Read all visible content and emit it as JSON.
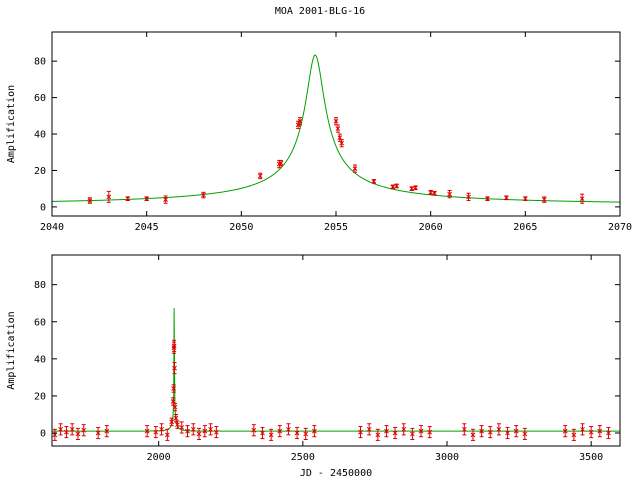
{
  "title": "MOA 2001-BLG-16",
  "colors": {
    "model": "#00a000",
    "data": "#e00000",
    "axes": "#000000"
  },
  "chart_data": [
    {
      "type": "scatter",
      "title": "MOA 2001-BLG-16",
      "xlabel": "",
      "ylabel": "Amplification",
      "xlim": [
        2040,
        2070
      ],
      "ylim": [
        -5,
        96
      ],
      "xticks": [
        2040,
        2045,
        2050,
        2055,
        2060,
        2065,
        2070
      ],
      "yticks": [
        0,
        20,
        40,
        60,
        80
      ],
      "grid": false,
      "model": {
        "t0": 2053.9,
        "u0": 0.012,
        "tE": 40.0,
        "color": "#00a000"
      },
      "series": [
        {
          "x": [
            2042.0,
            2043.0,
            2044.0,
            2045.0,
            2046.0,
            2048.0,
            2051.0,
            2052.0,
            2052.1,
            2053.0,
            2053.1,
            2055.0,
            2055.1,
            2055.2,
            2055.3,
            2056.0,
            2057.0,
            2058.0,
            2058.2,
            2059.0,
            2059.2,
            2060.0,
            2060.2,
            2061.0,
            2062.0,
            2063.0,
            2064.0,
            2065.0,
            2066.0,
            2068.0
          ],
          "y": [
            3.5,
            5.5,
            4.5,
            4.5,
            4.0,
            6.5,
            17.0,
            23.5,
            24.0,
            45.0,
            47.0,
            47.0,
            43.0,
            38.0,
            35.0,
            21.0,
            14.0,
            11.0,
            11.5,
            10.0,
            10.5,
            8.0,
            7.5,
            7.0,
            5.5,
            4.5,
            5.0,
            4.5,
            4.0,
            4.5
          ],
          "err": [
            1.5,
            3,
            1,
            1,
            2,
            1.5,
            1.5,
            2,
            1.5,
            2,
            2,
            2,
            2,
            2,
            2,
            2,
            1,
            1,
            1,
            1,
            1,
            1,
            1,
            2,
            2,
            1,
            1,
            1,
            1.5,
            2.5
          ],
          "color": "#e00000"
        }
      ]
    },
    {
      "type": "scatter",
      "title": "",
      "xlabel": "JD - 2450000",
      "ylabel": "Amplification",
      "xlim": [
        1630,
        3600
      ],
      "ylim": [
        -7,
        96
      ],
      "xticks": [
        2000,
        2500,
        3000,
        3500
      ],
      "yticks": [
        0,
        20,
        40,
        60,
        80
      ],
      "grid": false,
      "model": {
        "t0": 2053.9,
        "u0": 0.012,
        "tE": 40.0,
        "color": "#00a000"
      },
      "series": [
        {
          "x": [
            1640,
            1660,
            1680,
            1700,
            1720,
            1740,
            1790,
            1820,
            1960,
            1990,
            2010,
            2030,
            2045,
            2050,
            2052,
            2053,
            2053.5,
            2055,
            2057,
            2060,
            2065,
            2080,
            2100,
            2120,
            2140,
            2160,
            2180,
            2200,
            2330,
            2360,
            2390,
            2420,
            2450,
            2480,
            2510,
            2540,
            2700,
            2730,
            2760,
            2790,
            2820,
            2850,
            2880,
            2910,
            2940,
            3060,
            3090,
            3120,
            3150,
            3180,
            3210,
            3240,
            3270,
            3410,
            3440,
            3470,
            3500,
            3530,
            3560
          ],
          "y": [
            -1,
            2,
            0.5,
            2,
            -0.5,
            1.5,
            0,
            1,
            1,
            0.5,
            2,
            -1,
            6,
            17,
            24,
            46,
            47,
            35,
            14,
            8,
            4.5,
            3,
            1,
            2,
            -0.5,
            1,
            2,
            0.5,
            1.5,
            0,
            -1,
            1,
            2,
            0,
            -0.5,
            1,
            0.5,
            2,
            -1,
            1,
            0,
            2,
            -0.5,
            1,
            0.5,
            2,
            -1,
            1,
            0.5,
            2,
            0,
            1,
            -0.5,
            1,
            -1,
            2,
            0.5,
            1,
            0
          ],
          "err": [
            3,
            3,
            3,
            3,
            3,
            3,
            3,
            3,
            3,
            3,
            3,
            3,
            2,
            2,
            2,
            3,
            3,
            3,
            2,
            2,
            2,
            3,
            3,
            3,
            3,
            3,
            3,
            3,
            3,
            3,
            3,
            3,
            3,
            3,
            3,
            3,
            3,
            3,
            3,
            3,
            3,
            3,
            3,
            3,
            3,
            3,
            3,
            3,
            3,
            3,
            3,
            3,
            3,
            3,
            3,
            3,
            3,
            3,
            3
          ],
          "color": "#e00000"
        }
      ]
    }
  ]
}
